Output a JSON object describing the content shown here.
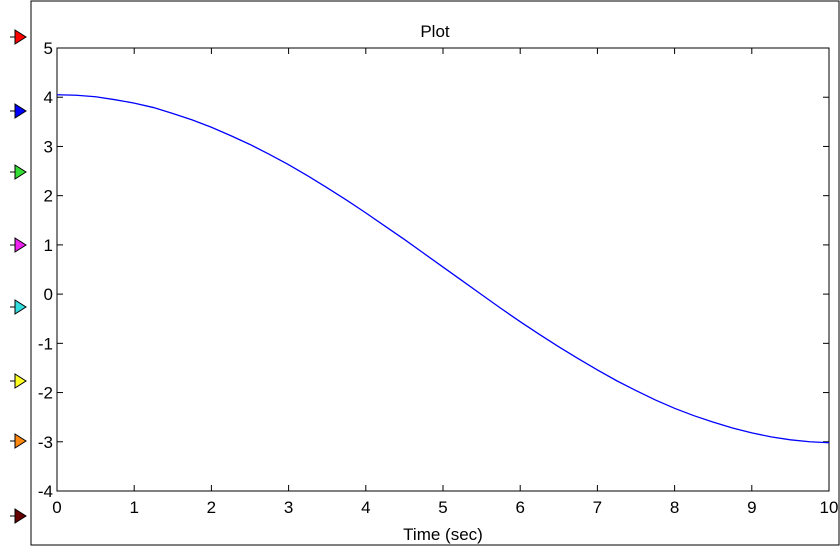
{
  "chart_data": {
    "type": "line",
    "title": "Plot",
    "xlabel": "Time (sec)",
    "ylabel": "",
    "xlim": [
      0,
      10
    ],
    "ylim": [
      -4,
      5
    ],
    "xticks": [
      0,
      1,
      2,
      3,
      4,
      5,
      6,
      7,
      8,
      9,
      10
    ],
    "yticks": [
      -4,
      -3,
      -2,
      -1,
      0,
      1,
      2,
      3,
      4,
      5
    ],
    "grid": false,
    "series": [
      {
        "color": "#0000ff",
        "x": [
          0,
          0.25,
          0.5,
          0.75,
          1,
          1.25,
          1.5,
          1.75,
          2,
          2.25,
          2.5,
          2.75,
          3,
          3.25,
          3.5,
          3.75,
          4,
          4.25,
          4.5,
          4.75,
          5,
          5.25,
          5.5,
          5.75,
          6,
          6.25,
          6.5,
          6.75,
          7,
          7.25,
          7.5,
          7.75,
          8,
          8.25,
          8.5,
          8.75,
          9,
          9.25,
          9.5,
          9.75,
          10
        ],
        "y": [
          4.05,
          4.04,
          4.01,
          3.95,
          3.88,
          3.79,
          3.67,
          3.54,
          3.39,
          3.22,
          3.04,
          2.84,
          2.63,
          2.4,
          2.16,
          1.91,
          1.65,
          1.38,
          1.11,
          0.83,
          0.55,
          0.27,
          -0.01,
          -0.29,
          -0.56,
          -0.82,
          -1.07,
          -1.31,
          -1.54,
          -1.76,
          -1.96,
          -2.15,
          -2.32,
          -2.47,
          -2.6,
          -2.72,
          -2.82,
          -2.9,
          -2.96,
          -3.0,
          -3.02
        ]
      }
    ]
  },
  "ports": [
    {
      "name": "port-red",
      "color": "#ff0000"
    },
    {
      "name": "port-blue",
      "color": "#0000ff"
    },
    {
      "name": "port-green",
      "color": "#33dd33"
    },
    {
      "name": "port-magenta",
      "color": "#ee22ee"
    },
    {
      "name": "port-cyan",
      "color": "#33dddd"
    },
    {
      "name": "port-yellow",
      "color": "#ffff22"
    },
    {
      "name": "port-orange",
      "color": "#ff8811"
    },
    {
      "name": "port-darkred",
      "color": "#660000"
    }
  ]
}
